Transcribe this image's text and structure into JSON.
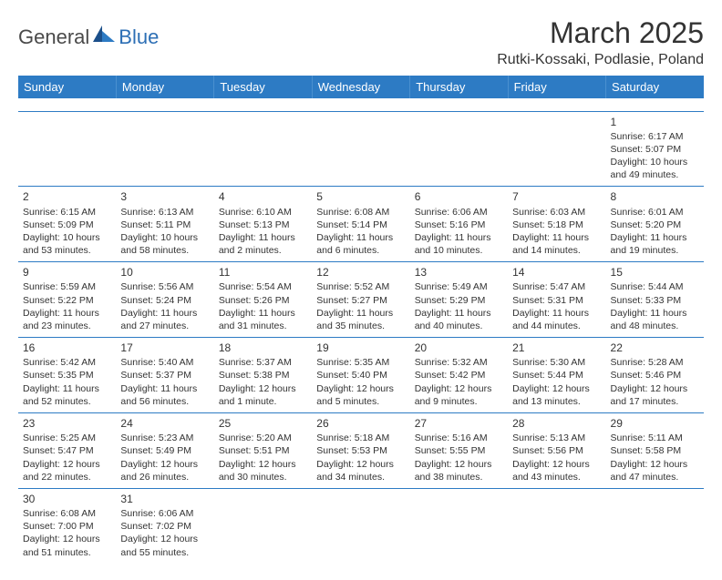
{
  "brand": {
    "part1": "General",
    "part2": "Blue"
  },
  "title": "March 2025",
  "location": "Rutki-Kossaki, Podlasie, Poland",
  "colors": {
    "header_bg": "#2d7bc4",
    "header_text": "#ffffff",
    "border": "#2d7bc4",
    "logo_blue": "#2d6fb5",
    "text": "#333333",
    "background": "#ffffff"
  },
  "weekdays": [
    "Sunday",
    "Monday",
    "Tuesday",
    "Wednesday",
    "Thursday",
    "Friday",
    "Saturday"
  ],
  "weeks": [
    [
      null,
      null,
      null,
      null,
      null,
      null,
      {
        "n": "1",
        "sunrise": "6:17 AM",
        "sunset": "5:07 PM",
        "dl": "10 hours and 49 minutes."
      }
    ],
    [
      {
        "n": "2",
        "sunrise": "6:15 AM",
        "sunset": "5:09 PM",
        "dl": "10 hours and 53 minutes."
      },
      {
        "n": "3",
        "sunrise": "6:13 AM",
        "sunset": "5:11 PM",
        "dl": "10 hours and 58 minutes."
      },
      {
        "n": "4",
        "sunrise": "6:10 AM",
        "sunset": "5:13 PM",
        "dl": "11 hours and 2 minutes."
      },
      {
        "n": "5",
        "sunrise": "6:08 AM",
        "sunset": "5:14 PM",
        "dl": "11 hours and 6 minutes."
      },
      {
        "n": "6",
        "sunrise": "6:06 AM",
        "sunset": "5:16 PM",
        "dl": "11 hours and 10 minutes."
      },
      {
        "n": "7",
        "sunrise": "6:03 AM",
        "sunset": "5:18 PM",
        "dl": "11 hours and 14 minutes."
      },
      {
        "n": "8",
        "sunrise": "6:01 AM",
        "sunset": "5:20 PM",
        "dl": "11 hours and 19 minutes."
      }
    ],
    [
      {
        "n": "9",
        "sunrise": "5:59 AM",
        "sunset": "5:22 PM",
        "dl": "11 hours and 23 minutes."
      },
      {
        "n": "10",
        "sunrise": "5:56 AM",
        "sunset": "5:24 PM",
        "dl": "11 hours and 27 minutes."
      },
      {
        "n": "11",
        "sunrise": "5:54 AM",
        "sunset": "5:26 PM",
        "dl": "11 hours and 31 minutes."
      },
      {
        "n": "12",
        "sunrise": "5:52 AM",
        "sunset": "5:27 PM",
        "dl": "11 hours and 35 minutes."
      },
      {
        "n": "13",
        "sunrise": "5:49 AM",
        "sunset": "5:29 PM",
        "dl": "11 hours and 40 minutes."
      },
      {
        "n": "14",
        "sunrise": "5:47 AM",
        "sunset": "5:31 PM",
        "dl": "11 hours and 44 minutes."
      },
      {
        "n": "15",
        "sunrise": "5:44 AM",
        "sunset": "5:33 PM",
        "dl": "11 hours and 48 minutes."
      }
    ],
    [
      {
        "n": "16",
        "sunrise": "5:42 AM",
        "sunset": "5:35 PM",
        "dl": "11 hours and 52 minutes."
      },
      {
        "n": "17",
        "sunrise": "5:40 AM",
        "sunset": "5:37 PM",
        "dl": "11 hours and 56 minutes."
      },
      {
        "n": "18",
        "sunrise": "5:37 AM",
        "sunset": "5:38 PM",
        "dl": "12 hours and 1 minute."
      },
      {
        "n": "19",
        "sunrise": "5:35 AM",
        "sunset": "5:40 PM",
        "dl": "12 hours and 5 minutes."
      },
      {
        "n": "20",
        "sunrise": "5:32 AM",
        "sunset": "5:42 PM",
        "dl": "12 hours and 9 minutes."
      },
      {
        "n": "21",
        "sunrise": "5:30 AM",
        "sunset": "5:44 PM",
        "dl": "12 hours and 13 minutes."
      },
      {
        "n": "22",
        "sunrise": "5:28 AM",
        "sunset": "5:46 PM",
        "dl": "12 hours and 17 minutes."
      }
    ],
    [
      {
        "n": "23",
        "sunrise": "5:25 AM",
        "sunset": "5:47 PM",
        "dl": "12 hours and 22 minutes."
      },
      {
        "n": "24",
        "sunrise": "5:23 AM",
        "sunset": "5:49 PM",
        "dl": "12 hours and 26 minutes."
      },
      {
        "n": "25",
        "sunrise": "5:20 AM",
        "sunset": "5:51 PM",
        "dl": "12 hours and 30 minutes."
      },
      {
        "n": "26",
        "sunrise": "5:18 AM",
        "sunset": "5:53 PM",
        "dl": "12 hours and 34 minutes."
      },
      {
        "n": "27",
        "sunrise": "5:16 AM",
        "sunset": "5:55 PM",
        "dl": "12 hours and 38 minutes."
      },
      {
        "n": "28",
        "sunrise": "5:13 AM",
        "sunset": "5:56 PM",
        "dl": "12 hours and 43 minutes."
      },
      {
        "n": "29",
        "sunrise": "5:11 AM",
        "sunset": "5:58 PM",
        "dl": "12 hours and 47 minutes."
      }
    ],
    [
      {
        "n": "30",
        "sunrise": "6:08 AM",
        "sunset": "7:00 PM",
        "dl": "12 hours and 51 minutes."
      },
      {
        "n": "31",
        "sunrise": "6:06 AM",
        "sunset": "7:02 PM",
        "dl": "12 hours and 55 minutes."
      },
      null,
      null,
      null,
      null,
      null
    ]
  ],
  "labels": {
    "sunrise": "Sunrise:",
    "sunset": "Sunset:",
    "daylight": "Daylight:"
  }
}
